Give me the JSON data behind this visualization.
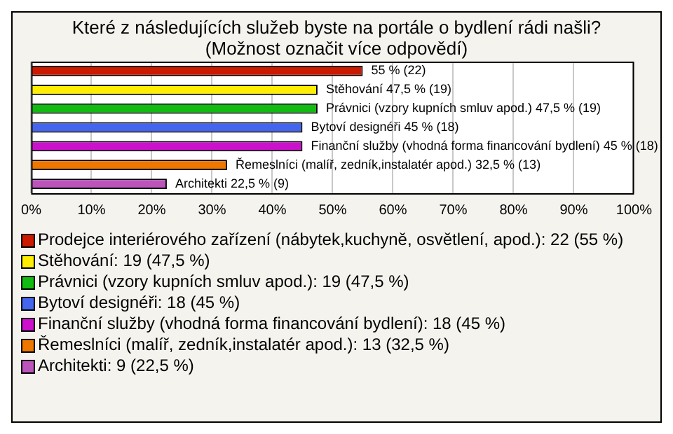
{
  "chart_data": {
    "type": "bar",
    "orientation": "horizontal",
    "title": "Které z následujících služeb byste na portále o bydlení rádi našli?\n(Možnost označit více odpovědí)",
    "categories": [
      null,
      null,
      null,
      null,
      null,
      null,
      null
    ],
    "series": [
      {
        "name": "Prodejce interiérového zařízení (nábytek,kuchyně, osvětlení, apod.): 22 (55 %)",
        "color": "#cc1a00",
        "values": [
          55,
          null,
          null,
          null,
          null,
          null,
          null
        ],
        "value_labels": [
          "55 % (22)",
          null,
          null,
          null,
          null,
          null,
          null
        ]
      },
      {
        "name": "Stěhování: 19 (47,5 %)",
        "color": "#ffee00",
        "values": [
          null,
          47.5,
          null,
          null,
          null,
          null,
          null
        ],
        "value_labels": [
          null,
          "Stěhování 47,5 % (19)",
          null,
          null,
          null,
          null,
          null
        ]
      },
      {
        "name": "Právnici (vzory kupních smluv apod.): 19 (47,5 %)",
        "color": "#11bb11",
        "values": [
          null,
          null,
          47.5,
          null,
          null,
          null,
          null
        ],
        "value_labels": [
          null,
          null,
          "Právnici (vzory kupních smluv apod.) 47,5 % (19)",
          null,
          null,
          null,
          null
        ]
      },
      {
        "name": "Bytoví designéři: 18 (45 %)",
        "color": "#4466ee",
        "values": [
          null,
          null,
          null,
          45,
          null,
          null,
          null
        ],
        "value_labels": [
          null,
          null,
          null,
          "Bytoví designéři 45 % (18)",
          null,
          null,
          null
        ]
      },
      {
        "name": "Finanční služby (vhodná forma financování bydlení): 18 (45 %)",
        "color": "#cc11cc",
        "values": [
          null,
          null,
          null,
          null,
          45,
          null,
          null
        ],
        "value_labels": [
          null,
          null,
          null,
          null,
          "Finanční služby (vhodná forma financování bydlení) 45 % (18)",
          null,
          null
        ]
      },
      {
        "name": "Řemeslníci (malíř, zedník,instalatér apod.): 13 (32,5 %)",
        "color": "#ee7700",
        "values": [
          null,
          null,
          null,
          null,
          null,
          32.5,
          null
        ],
        "value_labels": [
          null,
          null,
          null,
          null,
          null,
          "Řemeslníci (malíř, zedník,instalatér apod.) 32,5 % (13)",
          null
        ]
      },
      {
        "name": "Architekti: 9 (22,5 %)",
        "color": "#bb55bb",
        "values": [
          null,
          null,
          null,
          null,
          null,
          null,
          22.5
        ],
        "value_labels": [
          null,
          null,
          null,
          null,
          null,
          null,
          "Architekti 22,5 % (9)"
        ]
      }
    ],
    "xlim": [
      0,
      100
    ],
    "xticks": [
      {
        "value": 0,
        "label": "0%"
      },
      {
        "value": 10,
        "label": "10%"
      },
      {
        "value": 20,
        "label": "20%"
      },
      {
        "value": 30,
        "label": "30%"
      },
      {
        "value": 40,
        "label": "40%"
      },
      {
        "value": 50,
        "label": "50%"
      },
      {
        "value": 60,
        "label": "60%"
      },
      {
        "value": 70,
        "label": "70%"
      },
      {
        "value": 80,
        "label": "80%"
      },
      {
        "value": 90,
        "label": "90%"
      },
      {
        "value": 100,
        "label": "100%"
      }
    ],
    "grid": "x",
    "legend": "bottom"
  }
}
